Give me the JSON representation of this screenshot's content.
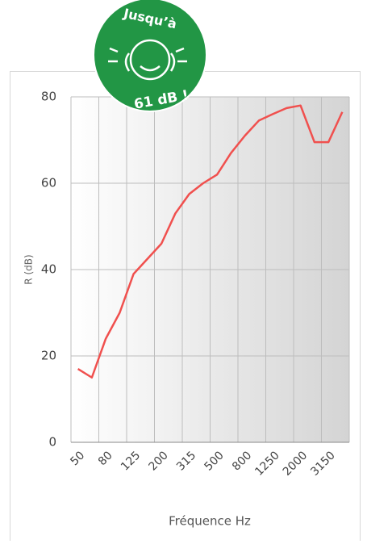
{
  "chart_data": {
    "type": "line",
    "badge": {
      "top": "Jusqu’à",
      "bottom": "61 dB !"
    },
    "y_label": "R (dB)",
    "x_label": "Fréquence Hz",
    "categories": [
      "50",
      null,
      "80",
      null,
      "125",
      null,
      "200",
      null,
      "315",
      null,
      "500",
      null,
      "800",
      null,
      "1250",
      null,
      "2000",
      null,
      "3150",
      null
    ],
    "values": [
      17,
      15,
      24,
      30,
      39,
      42.5,
      46,
      53,
      57.5,
      60,
      62,
      67,
      71,
      74.5,
      76,
      77.4,
      78,
      69.5,
      69.5,
      76.5
    ],
    "color": "#f0504e",
    "ylim": [
      0,
      80
    ],
    "yticks": [
      0,
      20,
      40,
      60,
      80
    ],
    "grid": true
  }
}
